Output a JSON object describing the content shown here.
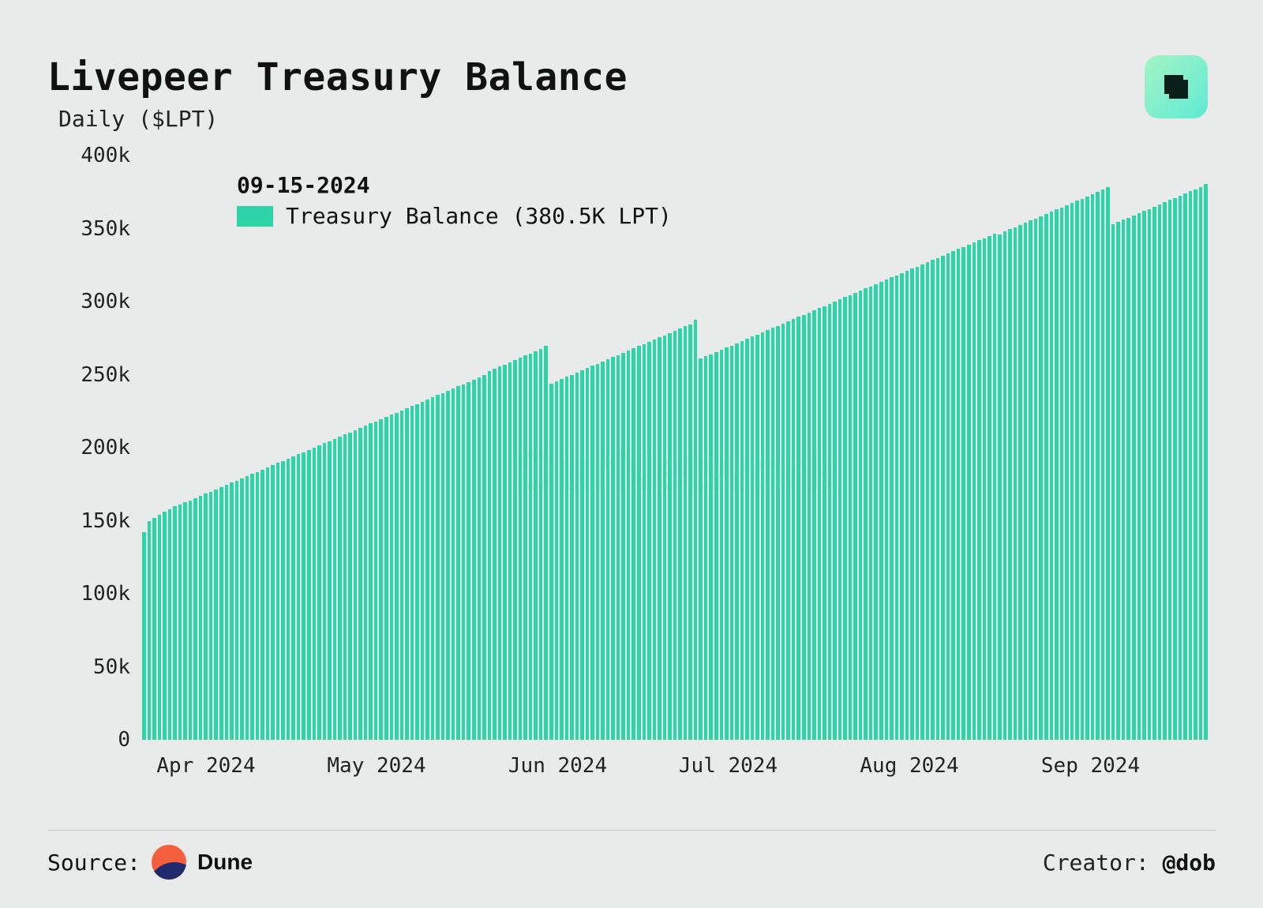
{
  "title": "Livepeer Treasury Balance",
  "subtitle": "Daily ($LPT)",
  "watermark": "OurNetwork",
  "legend": {
    "date": "09-15-2024",
    "series_label": "Treasury Balance (380.5K LPT)",
    "swatch_color": "#2dd4a7"
  },
  "footer": {
    "source_label": "Source:",
    "source_name": "Dune",
    "creator_label": "Creator:",
    "creator_handle": "@dob"
  },
  "chart": {
    "type": "bar",
    "bar_color": "#2dd4a7",
    "background_color": "#e9eaea",
    "ylim": [
      0,
      400000
    ],
    "y_ticks": [
      0,
      50000,
      100000,
      150000,
      200000,
      250000,
      300000,
      350000,
      400000
    ],
    "y_tick_labels": [
      "0",
      "50k",
      "100k",
      "150k",
      "200k",
      "250k",
      "300k",
      "350k",
      "400k"
    ],
    "x_tick_positions_pct": [
      6,
      22,
      39,
      55,
      72,
      89
    ],
    "x_tick_labels": [
      "Apr 2024",
      "May 2024",
      "Jun 2024",
      "Jul 2024",
      "Aug 2024",
      "Sep 2024"
    ],
    "values": [
      142000,
      150000,
      152000,
      154000,
      156000,
      158000,
      160000,
      161000,
      162500,
      164000,
      165500,
      167000,
      168500,
      170000,
      171500,
      173000,
      174500,
      176000,
      177500,
      179000,
      180500,
      182000,
      183500,
      185000,
      186500,
      188000,
      189500,
      191000,
      192500,
      194000,
      195500,
      197000,
      198500,
      200000,
      201500,
      203000,
      204500,
      206000,
      207500,
      209000,
      210500,
      212000,
      213500,
      215000,
      216500,
      218000,
      219500,
      221000,
      222500,
      224000,
      225500,
      227000,
      228500,
      230000,
      231500,
      233000,
      234500,
      236000,
      237500,
      239000,
      240500,
      242000,
      243500,
      245000,
      246500,
      248000,
      249500,
      252500,
      254000,
      255500,
      257000,
      258500,
      260000,
      261500,
      263000,
      264500,
      266000,
      267500,
      269500,
      244000,
      245500,
      247000,
      248500,
      250000,
      251500,
      253000,
      254500,
      256000,
      257500,
      259000,
      260500,
      262000,
      263500,
      265000,
      266500,
      268000,
      269500,
      271000,
      272500,
      274000,
      275500,
      277000,
      278500,
      280000,
      281500,
      283000,
      284500,
      287500,
      261000,
      262500,
      264000,
      265500,
      267000,
      268500,
      270000,
      271500,
      273000,
      274500,
      276000,
      277500,
      279000,
      280500,
      282000,
      283500,
      285000,
      286500,
      288000,
      289500,
      291000,
      292500,
      294000,
      295500,
      297000,
      298500,
      300000,
      301500,
      303000,
      304500,
      306000,
      307500,
      309000,
      310500,
      312000,
      313500,
      315000,
      316500,
      318000,
      319500,
      321000,
      322500,
      324000,
      325500,
      327000,
      328500,
      330000,
      331500,
      333000,
      334500,
      336000,
      337500,
      339000,
      340500,
      342000,
      343500,
      345000,
      346500,
      346000,
      348000,
      349500,
      351000,
      352500,
      354000,
      355500,
      357000,
      358500,
      360000,
      361500,
      363000,
      364500,
      366000,
      367500,
      369000,
      370500,
      372000,
      373500,
      375000,
      376500,
      378500,
      353000,
      354500,
      356000,
      357500,
      359000,
      360500,
      362000,
      363500,
      365000,
      366500,
      368000,
      369500,
      371000,
      372500,
      374000,
      375500,
      377000,
      378500,
      380500
    ]
  }
}
